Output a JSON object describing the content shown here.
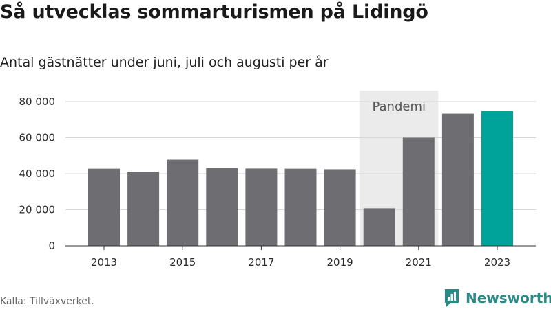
{
  "title": "Så utvecklas sommarturismen på Lidingö",
  "subtitle": "Antal gästnätter under juni, juli och augusti per år",
  "source": "Källa: Tillväxverket.",
  "brand": {
    "name": "Newsworthy",
    "icon": "newsworthy-logo-icon",
    "color": "#2c8a86"
  },
  "chart_data": {
    "type": "bar",
    "categories": [
      "2013",
      "2014",
      "2015",
      "2016",
      "2017",
      "2018",
      "2019",
      "2020",
      "2021",
      "2022",
      "2023"
    ],
    "values": [
      42800,
      41000,
      47800,
      43200,
      42900,
      42800,
      42500,
      20800,
      60000,
      73300,
      74800
    ],
    "x_tick_labels": [
      "2013",
      "2015",
      "2017",
      "2019",
      "2021",
      "2023"
    ],
    "y_ticks": [
      0,
      20000,
      40000,
      60000,
      80000
    ],
    "y_tick_labels": [
      "0",
      "20 000",
      "40 000",
      "60 000",
      "80 000"
    ],
    "ylim": [
      0,
      85000
    ],
    "grid": true,
    "highlight_category": "2023",
    "bar_color": "#6e6d72",
    "highlight_color": "#00a39a",
    "annotation": {
      "label": "Pandemi",
      "from": "2020",
      "to": "2021",
      "color": "#ebebeb"
    }
  }
}
